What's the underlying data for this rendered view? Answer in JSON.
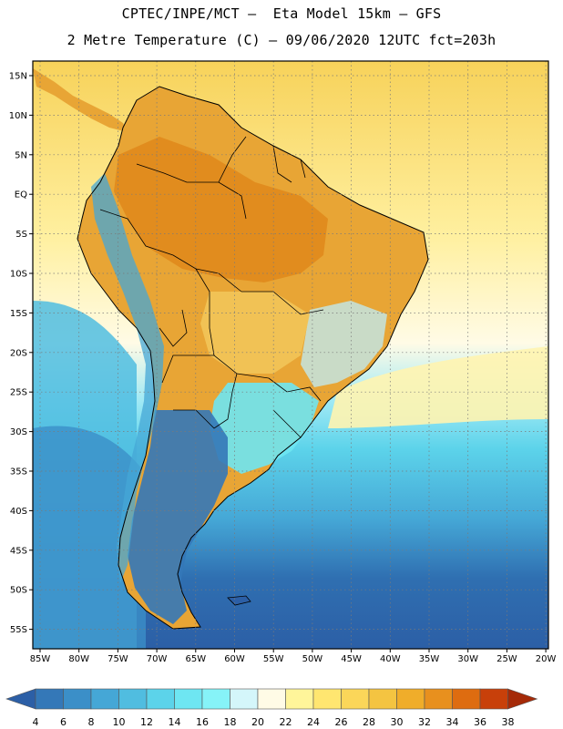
{
  "header": {
    "line1": "CPTEC/INPE/MCT –  Eta Model 15km – GFS",
    "line2": "2 Metre Temperature (C) – 09/06/2020 12UTC fct=203h"
  },
  "axes": {
    "lat_ticks": [
      "15N",
      "10N",
      "5N",
      "EQ",
      "5S",
      "10S",
      "15S",
      "20S",
      "25S",
      "30S",
      "35S",
      "40S",
      "45S",
      "50S",
      "55S"
    ],
    "lon_ticks": [
      "85W",
      "80W",
      "75W",
      "70W",
      "65W",
      "60W",
      "55W",
      "50W",
      "45W",
      "40W",
      "35W",
      "30W",
      "25W",
      "20W"
    ]
  },
  "colorbar": {
    "labels": [
      "4",
      "6",
      "8",
      "10",
      "12",
      "14",
      "16",
      "18",
      "20",
      "22",
      "24",
      "26",
      "28",
      "30",
      "32",
      "34",
      "36",
      "38"
    ],
    "colors": [
      "#2c5fa6",
      "#3478b8",
      "#3b8fc8",
      "#45a7d6",
      "#50bde0",
      "#5cd3ea",
      "#6ee6f2",
      "#86f3f8",
      "#d4f6fa",
      "#fffbe6",
      "#fff59a",
      "#ffe670",
      "#fbd659",
      "#f4c441",
      "#f0ad2a",
      "#e8901e",
      "#de6c10",
      "#c8400a",
      "#a52a08"
    ]
  }
}
